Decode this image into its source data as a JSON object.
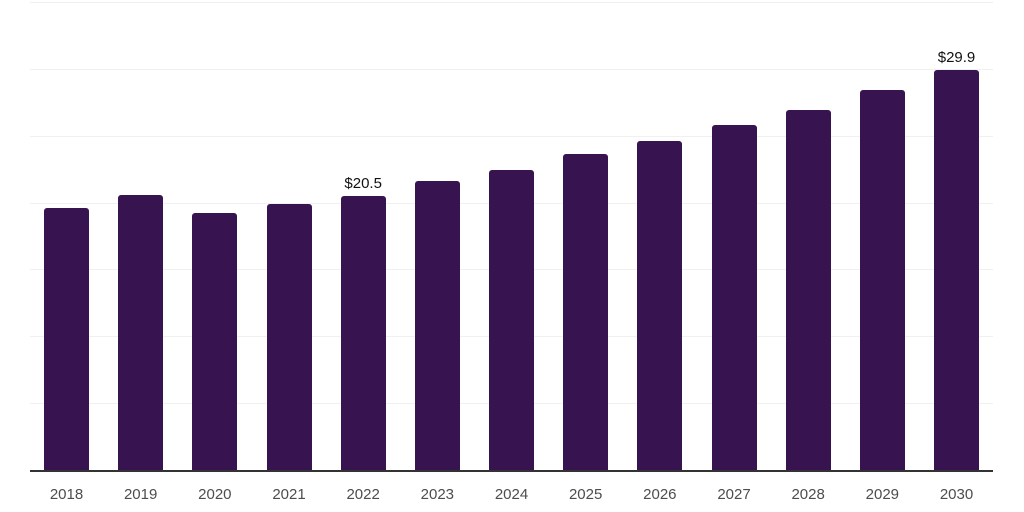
{
  "chart_data": {
    "type": "bar",
    "title": "",
    "xlabel": "",
    "ylabel": "",
    "categories": [
      "2018",
      "2019",
      "2020",
      "2021",
      "2022",
      "2023",
      "2024",
      "2025",
      "2026",
      "2027",
      "2028",
      "2029",
      "2030"
    ],
    "values": [
      19.6,
      20.6,
      19.2,
      19.9,
      20.5,
      21.6,
      22.4,
      23.6,
      24.6,
      25.8,
      26.9,
      28.4,
      29.9
    ],
    "data_labels": {
      "2022": "$20.5",
      "2030": "$29.9"
    },
    "value_prefix": "$",
    "ylim": [
      0,
      35
    ],
    "grid": true,
    "gridline_step": 5,
    "y_tick_labels_shown": false,
    "legend_position": "none",
    "colors": {
      "bar": "#371350",
      "gridline": "#F0F0F3",
      "axis_line": "#333333",
      "tick_label": "#4D4D4D",
      "data_label": "#111111",
      "background": "#FFFFFF"
    }
  }
}
